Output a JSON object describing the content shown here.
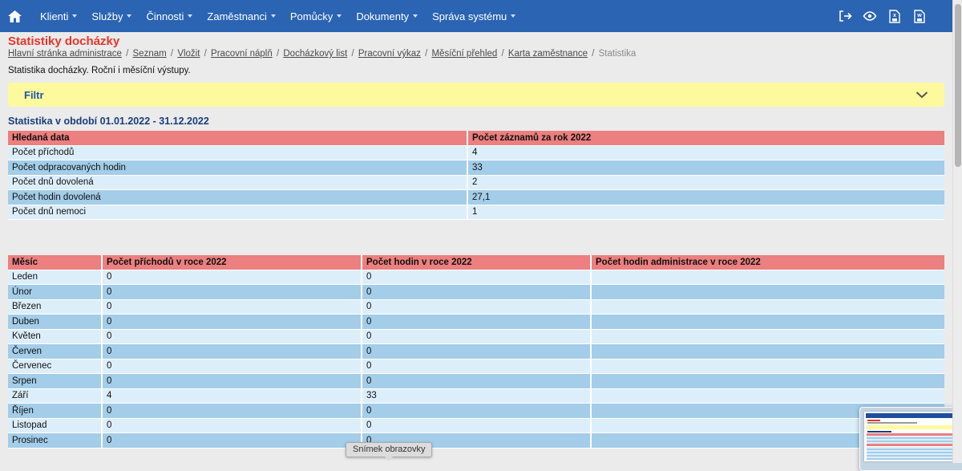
{
  "navbar": {
    "items": [
      "Klienti",
      "Služby",
      "Činnosti",
      "Zaměstnanci",
      "Pomůcky",
      "Dokumenty",
      "Správa systému"
    ],
    "icons": [
      "home-icon",
      "logout-icon",
      "eye-icon",
      "excel-file-icon",
      "word-file-icon"
    ]
  },
  "page": {
    "title": "Statistiky docházky",
    "description": "Statistika docházky. Roční i měsíční výstupy.",
    "filter_label": "Filtr",
    "section_title": "Statistika v období 01.01.2022 - 31.12.2022"
  },
  "breadcrumb": {
    "links": [
      "Hlavní stránka administrace",
      "Seznam",
      "Vložit",
      "Pracovní náplň",
      "Docházkový list",
      "Pracovní výkaz",
      "Měsíční přehled",
      "Karta zaměstnance"
    ],
    "separator": "/",
    "current": "Statistika"
  },
  "summary_table": {
    "headers": [
      "Hledaná data",
      "Počet záznamů za rok 2022"
    ],
    "rows": [
      [
        "Počet příchodů",
        "4"
      ],
      [
        "Počet odpracovaných hodin",
        "33"
      ],
      [
        "Počet dnů dovolená",
        "2"
      ],
      [
        "Počet hodin dovolená",
        "27,1"
      ],
      [
        "Počet dnů nemoci",
        "1"
      ]
    ]
  },
  "monthly_table": {
    "headers": [
      "Měsíc",
      "Počet příchodů v roce 2022",
      "Počet hodin v roce 2022",
      "Počet hodin administrace v roce 2022"
    ],
    "rows": [
      [
        "Leden",
        "0",
        "0",
        ""
      ],
      [
        "Únor",
        "0",
        "0",
        ""
      ],
      [
        "Březen",
        "0",
        "0",
        ""
      ],
      [
        "Duben",
        "0",
        "0",
        ""
      ],
      [
        "Květen",
        "0",
        "0",
        ""
      ],
      [
        "Červen",
        "0",
        "0",
        ""
      ],
      [
        "Červenec",
        "0",
        "0",
        ""
      ],
      [
        "Srpen",
        "0",
        "0",
        ""
      ],
      [
        "Září",
        "4",
        "33",
        ""
      ],
      [
        "Říjen",
        "0",
        "0",
        ""
      ],
      [
        "Listopad",
        "0",
        "0",
        ""
      ],
      [
        "Prosinec",
        "0",
        "0",
        ""
      ]
    ]
  },
  "tooltip": {
    "text": "Snímek obrazovky"
  },
  "colors": {
    "navbar_bg": "#2a64b2",
    "title_red": "#e8352a",
    "filter_bg": "#fdfa9e",
    "section_blue": "#1a3e7a",
    "table_header_red": "#ec7f7f",
    "row_light": "#ddeefb",
    "row_dark": "#a3cde9",
    "page_bg": "#ebebeb"
  }
}
